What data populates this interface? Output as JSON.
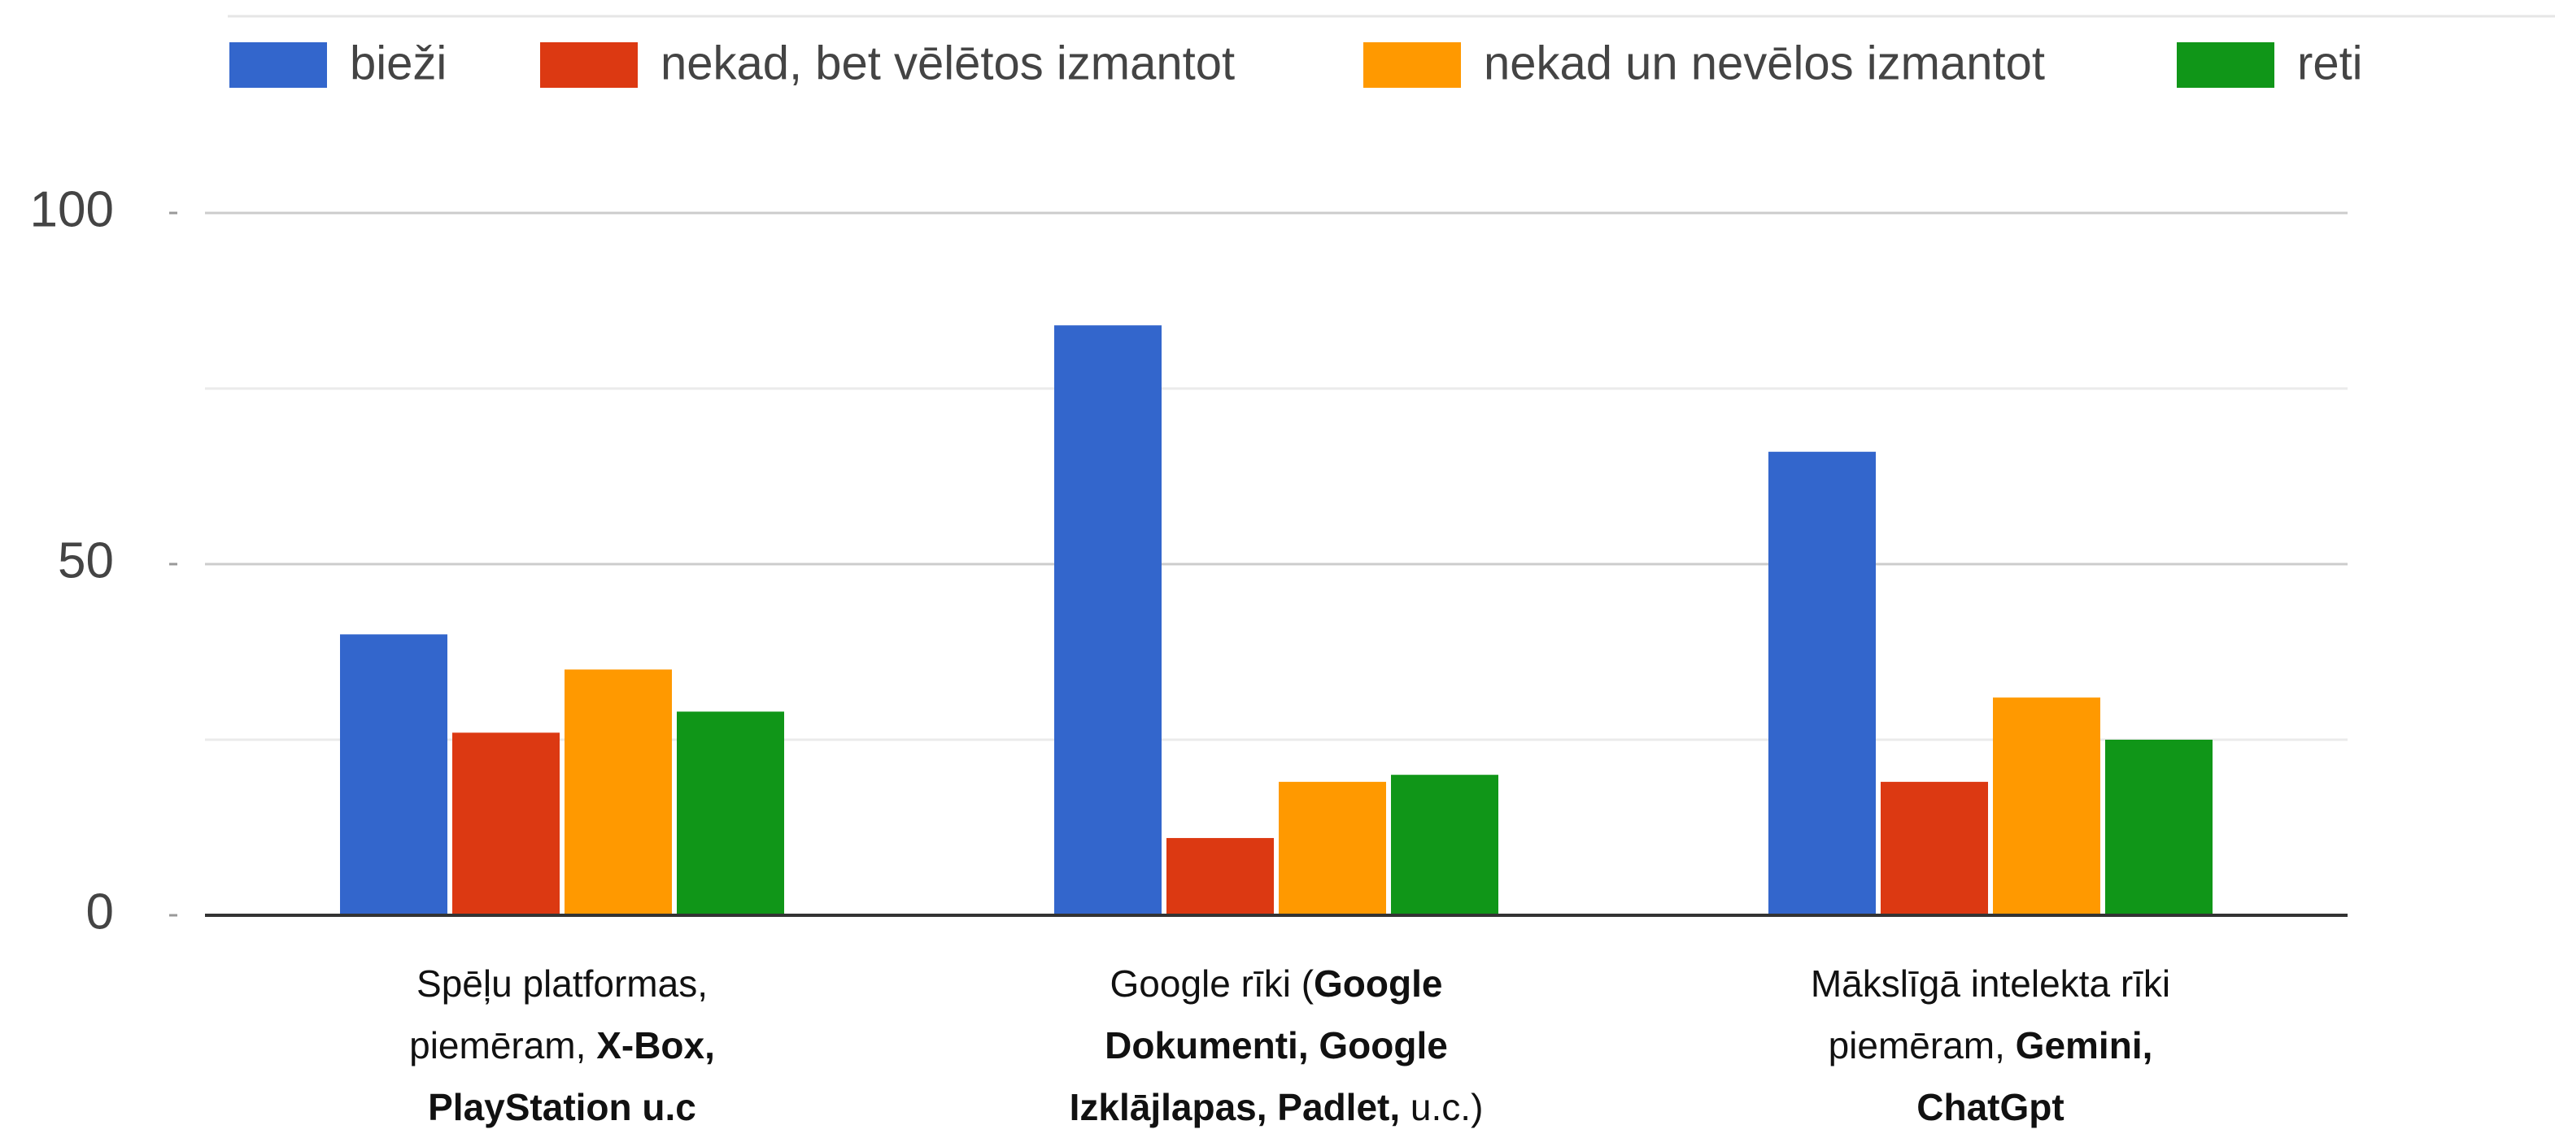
{
  "chart_data": {
    "type": "bar",
    "categories": [
      [
        [
          {
            "text": "Spēļu platformas,",
            "bold": false
          }
        ],
        [
          {
            "text": "piemēram, ",
            "bold": false
          },
          {
            "text": "X-Box,",
            "bold": true
          }
        ],
        [
          {
            "text": "PlayStation u.c",
            "bold": true
          }
        ]
      ],
      [
        [
          {
            "text": "Google rīki (",
            "bold": false
          },
          {
            "text": "Google",
            "bold": true
          }
        ],
        [
          {
            "text": "Dokumenti, Google",
            "bold": true
          }
        ],
        [
          {
            "text": "Izklājlapas, Padlet,",
            "bold": true
          },
          {
            "text": " u.c.)",
            "bold": false
          }
        ]
      ],
      [
        [
          {
            "text": "Mākslīgā intelekta rīki",
            "bold": false
          }
        ],
        [
          {
            "text": "piemēram, ",
            "bold": false
          },
          {
            "text": "Gemini,",
            "bold": true
          }
        ],
        [
          {
            "text": "ChatGpt",
            "bold": true
          }
        ]
      ]
    ],
    "series": [
      {
        "name": "bieži",
        "color": "#3366cc",
        "values": [
          40,
          84,
          66
        ]
      },
      {
        "name": "nekad, bet vēlētos izmantot",
        "color": "#dc3912",
        "values": [
          26,
          11,
          19
        ]
      },
      {
        "name": "nekad un nevēlos izmantot",
        "color": "#ff9900",
        "values": [
          35,
          19,
          31
        ]
      },
      {
        "name": "reti",
        "color": "#109618",
        "values": [
          29,
          20,
          25
        ]
      }
    ],
    "ylim": [
      0,
      100
    ],
    "yticks": [
      0,
      50,
      100
    ],
    "minor_yticks": [
      25,
      75
    ],
    "grid": true,
    "legend": "top"
  }
}
